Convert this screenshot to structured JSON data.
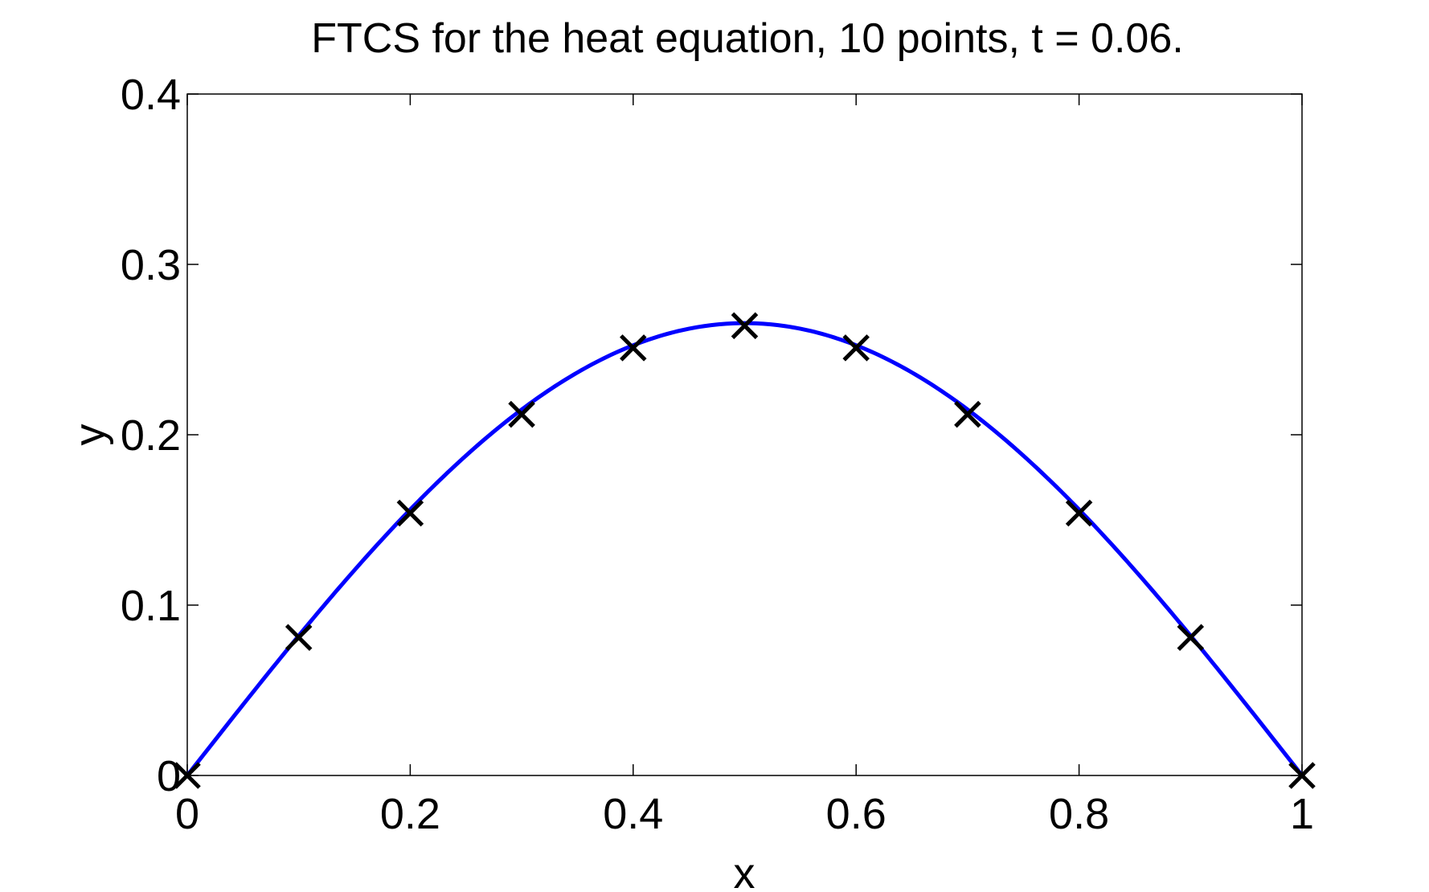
{
  "chart_data": {
    "type": "line",
    "title": "FTCS for the heat equation, 10 points, t = 0.06.",
    "xlabel": "x",
    "ylabel": "y",
    "xlim": [
      0,
      1
    ],
    "ylim": [
      0,
      0.4
    ],
    "xticks": [
      0,
      0.2,
      0.4,
      0.6,
      0.8,
      1
    ],
    "xtick_labels": [
      "0",
      "0.2",
      "0.4",
      "0.6",
      "0.8",
      "1"
    ],
    "yticks": [
      0,
      0.1,
      0.2,
      0.3,
      0.4
    ],
    "ytick_labels": [
      "0",
      "0.1",
      "0.2",
      "0.3",
      "0.4"
    ],
    "grid": false,
    "series": [
      {
        "style": "solid-line",
        "color": "#0000ff",
        "function": "0.2655*sin(pi*x)"
      },
      {
        "style": "x-markers",
        "color": "#000000",
        "x": [
          0,
          0.1,
          0.2,
          0.3,
          0.4,
          0.5,
          0.6,
          0.7,
          0.8,
          0.9,
          1.0
        ],
        "y": [
          0,
          0.081,
          0.154,
          0.212,
          0.251,
          0.264,
          0.251,
          0.212,
          0.154,
          0.081,
          0
        ]
      }
    ]
  }
}
